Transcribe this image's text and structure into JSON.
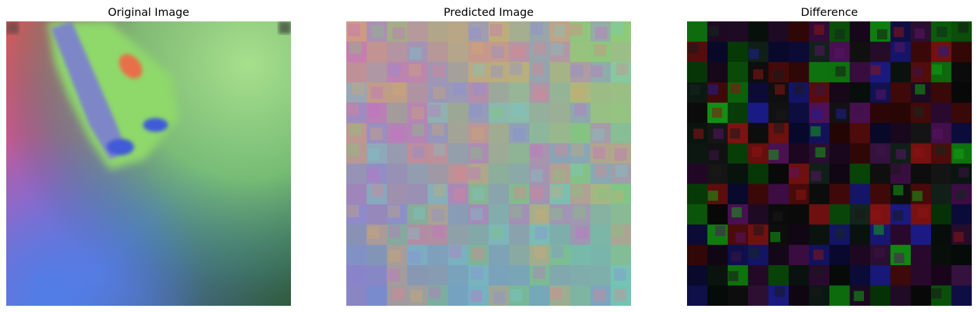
{
  "panels": [
    {
      "title": "Original Image"
    },
    {
      "title": "Predicted Image"
    },
    {
      "title": "Difference"
    }
  ],
  "grid": {
    "rows": 14,
    "cols": 14
  }
}
